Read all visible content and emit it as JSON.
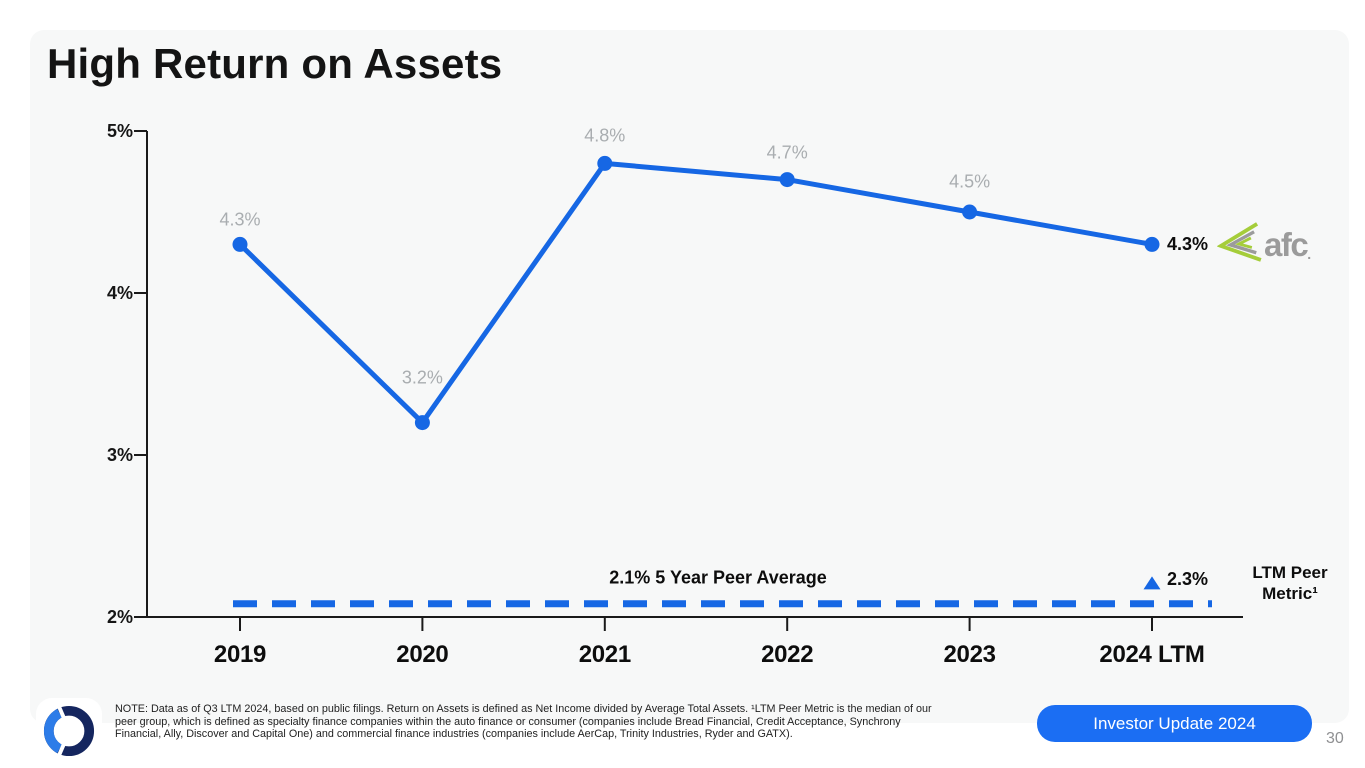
{
  "slide": {
    "title": "High Return on Assets",
    "footer_note": "NOTE: Data as of Q3 LTM 2024, based on public filings. Return on Assets is defined as Net Income divided by Average Total Assets. ¹LTM Peer Metric is the median of our peer group, which is defined as specialty finance companies within the auto finance or consumer (companies include Bread Financial, Credit Acceptance, Synchrony Financial, Ally, Discover and Capital One) and commercial finance industries (companies include AerCap, Trinity Industries, Ryder and GATX).",
    "button_label": "Investor Update 2024",
    "page_number": "30",
    "brand_text": "afc",
    "brand_dot": "."
  },
  "chart_data": {
    "type": "line",
    "title": "High Return on Assets",
    "categories": [
      "2019",
      "2020",
      "2021",
      "2022",
      "2023",
      "2024 LTM"
    ],
    "series": [
      {
        "name": "Return on Assets",
        "values": [
          4.3,
          3.2,
          4.8,
          4.7,
          4.5,
          4.3
        ],
        "point_labels": [
          "4.3%",
          "3.2%",
          "4.8%",
          "4.7%",
          "4.5%",
          "4.3%"
        ]
      }
    ],
    "final_point_label": "4.3%",
    "peer_average": {
      "value": 2.1,
      "label": "2.1% 5 Year Peer Average"
    },
    "ltm_peer_metric": {
      "value": 2.3,
      "value_label": "2.3%",
      "caption_lines": [
        "LTM Peer",
        "Metric¹"
      ]
    },
    "y_ticks": [
      {
        "value": 5,
        "label": "5%"
      },
      {
        "value": 4,
        "label": "4%"
      },
      {
        "value": 3,
        "label": "3%"
      },
      {
        "value": 2,
        "label": "2%"
      }
    ],
    "ylim": [
      2,
      5
    ],
    "grid": false,
    "legend": "none",
    "colors": {
      "line": "#1667e4",
      "peer_dash": "#1667e4",
      "point_label_gray": "#a9adb0",
      "text_black": "#0d0d0d",
      "axis": "#1a1a1a"
    }
  }
}
